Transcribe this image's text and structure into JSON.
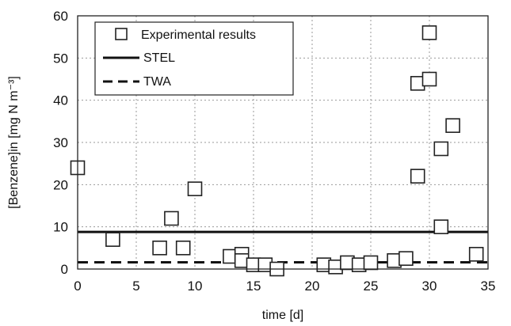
{
  "chart_data": {
    "type": "scatter",
    "xlabel": "time [d]",
    "ylabel": "[Benzene]in [mg N m⁻³]",
    "xlim": [
      0,
      35
    ],
    "ylim": [
      0,
      60
    ],
    "xticks": [
      "0",
      "5",
      "10",
      "15",
      "20",
      "25",
      "30",
      "35"
    ],
    "yticks": [
      "0",
      "10",
      "20",
      "30",
      "40",
      "50",
      "60"
    ],
    "grid": true,
    "legend_position": "top-left",
    "series": [
      {
        "name": "Experimental results",
        "kind": "scatter",
        "marker": "open-square",
        "x": [
          0,
          3,
          7,
          8,
          9,
          10,
          13,
          14,
          14,
          15,
          16,
          17,
          21,
          22,
          23,
          24,
          25,
          27,
          28,
          29,
          29,
          30,
          30,
          31,
          31,
          32,
          34
        ],
        "y": [
          24,
          7,
          5,
          12,
          5,
          19,
          3,
          3.5,
          2,
          1,
          1,
          0,
          1,
          0.5,
          1.5,
          1,
          1.5,
          2,
          2.5,
          44,
          22,
          45,
          56,
          10,
          28.5,
          34,
          3.5
        ]
      },
      {
        "name": "STEL",
        "kind": "line",
        "style": "solid",
        "x": [
          0,
          35
        ],
        "y": [
          8.8,
          8.8
        ]
      },
      {
        "name": "TWA",
        "kind": "line",
        "style": "dashed",
        "x": [
          0,
          35
        ],
        "y": [
          1.6,
          1.6
        ]
      }
    ]
  }
}
